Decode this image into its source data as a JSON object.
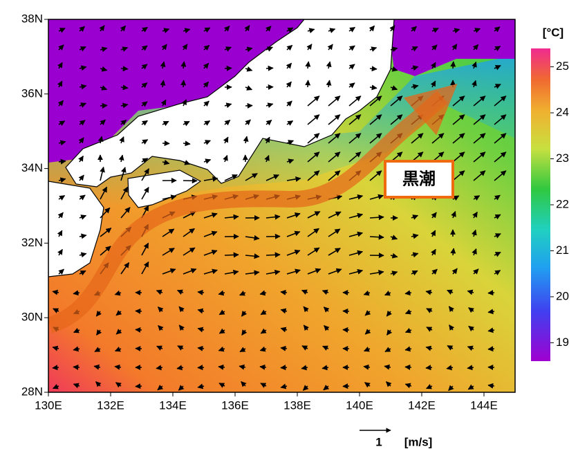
{
  "map": {
    "lonlim": [
      130,
      145
    ],
    "latlim": [
      28,
      38
    ],
    "lon_ticks": [
      {
        "value": 130,
        "label": "130E"
      },
      {
        "value": 132,
        "label": "132E"
      },
      {
        "value": 134,
        "label": "134E"
      },
      {
        "value": 136,
        "label": "136E"
      },
      {
        "value": 138,
        "label": "138E"
      },
      {
        "value": 140,
        "label": "140E"
      },
      {
        "value": 142,
        "label": "142E"
      },
      {
        "value": 144,
        "label": "144E"
      }
    ],
    "lat_ticks": [
      {
        "value": 28,
        "label": "28N"
      },
      {
        "value": 30,
        "label": "30N"
      },
      {
        "value": 32,
        "label": "32N"
      },
      {
        "value": 34,
        "label": "34N"
      },
      {
        "value": 36,
        "label": "36N"
      },
      {
        "value": 38,
        "label": "38N"
      }
    ],
    "colorbar": {
      "unit": "[°C]",
      "range": [
        18.6,
        25.4
      ],
      "ticks": [
        19,
        20,
        21,
        22,
        23,
        24,
        25
      ]
    },
    "annotation": "黒潮",
    "vector_scale": {
      "value": 1,
      "unit": "[m/s]"
    }
  }
}
